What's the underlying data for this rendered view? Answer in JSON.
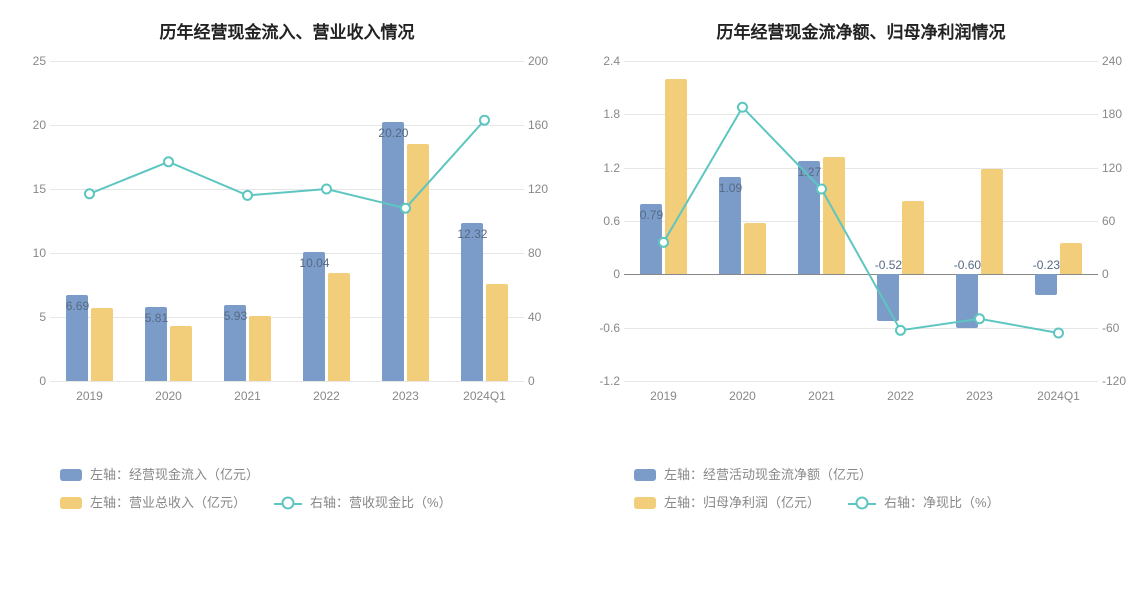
{
  "colors": {
    "bar1": "#7b9cc8",
    "bar2": "#f2cd7a",
    "line": "#5ec6c0",
    "grid": "#e6e6e6",
    "axis_text": "#888888",
    "title_text": "#222222",
    "bar_label": "#566a85",
    "bg": "#ffffff"
  },
  "left_chart": {
    "title": "历年经营现金流入、营业收入情况",
    "categories": [
      "2019",
      "2020",
      "2021",
      "2022",
      "2023",
      "2024Q1"
    ],
    "left_axis": {
      "min": 0,
      "max": 25,
      "step": 5
    },
    "right_axis": {
      "min": 0,
      "max": 200,
      "step": 40
    },
    "series": {
      "bar1": {
        "name": "左轴：经营现金流入（亿元）",
        "values": [
          6.69,
          5.81,
          5.93,
          10.04,
          20.2,
          12.32
        ]
      },
      "bar2": {
        "name": "左轴：营业总收入（亿元）",
        "values": [
          5.7,
          4.3,
          5.1,
          8.4,
          18.5,
          7.6
        ]
      },
      "line": {
        "name": "右轴：营收现金比（%）",
        "values": [
          117,
          137,
          116,
          120,
          108,
          163
        ]
      }
    },
    "bar_labels": [
      "6.69",
      "5.81",
      "5.93",
      "10.04",
      "20.20",
      "12.32"
    ]
  },
  "right_chart": {
    "title": "历年经营现金流净额、归母净利润情况",
    "categories": [
      "2019",
      "2020",
      "2021",
      "2022",
      "2023",
      "2024Q1"
    ],
    "left_axis": {
      "min": -1.2,
      "max": 2.4,
      "step": 0.6
    },
    "right_axis": {
      "min": -120,
      "max": 240,
      "step": 60
    },
    "series": {
      "bar1": {
        "name": "左轴：经营活动现金流净额（亿元）",
        "values": [
          0.79,
          1.09,
          1.27,
          -0.52,
          -0.6,
          -0.23
        ]
      },
      "bar2": {
        "name": "左轴：归母净利润（亿元）",
        "values": [
          2.2,
          0.58,
          1.32,
          0.82,
          1.19,
          0.35
        ]
      },
      "line": {
        "name": "右轴：净现比（%）",
        "values": [
          36,
          188,
          96,
          -63,
          -50,
          -66
        ]
      }
    },
    "bar_labels": [
      "0.79",
      "1.09",
      "1.27",
      "-0.52",
      "-0.60",
      "-0.23"
    ]
  }
}
